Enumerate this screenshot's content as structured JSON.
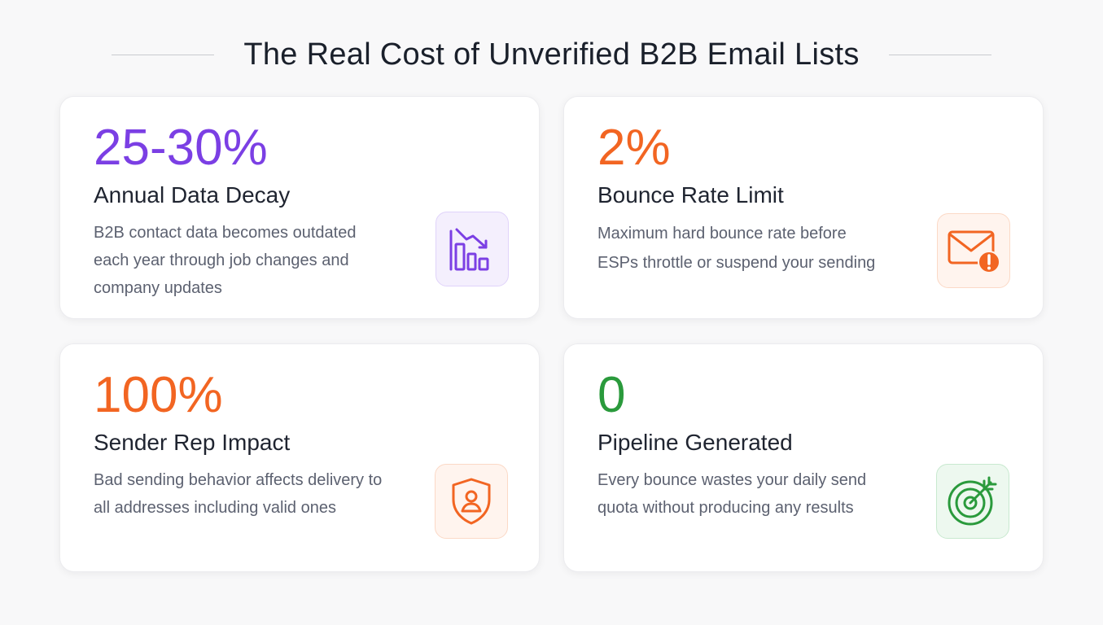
{
  "header": {
    "title": "The Real Cost of Unverified B2B Email Lists"
  },
  "cards": [
    {
      "stat": "25-30%",
      "label": "Annual Data Decay",
      "description": "B2B contact data becomes outdated each year through job changes and company updates",
      "icon": "declining-bar-chart-icon",
      "accent": "#7b3fe4"
    },
    {
      "stat": "2%",
      "label": "Bounce Rate Limit",
      "description": "Maximum hard bounce rate before ESPs throttle or suspend your sending",
      "icon": "envelope-alert-icon",
      "accent": "#f26522"
    },
    {
      "stat": "100%",
      "label": "Sender Rep Impact",
      "description": "Bad sending behavior affects delivery to all addresses including valid ones",
      "icon": "shield-user-icon",
      "accent": "#f26522"
    },
    {
      "stat": "0",
      "label": "Pipeline Generated",
      "description": "Every bounce wastes your daily send quota without producing any results",
      "icon": "target-arrow-icon",
      "accent": "#2a9a3c"
    }
  ]
}
